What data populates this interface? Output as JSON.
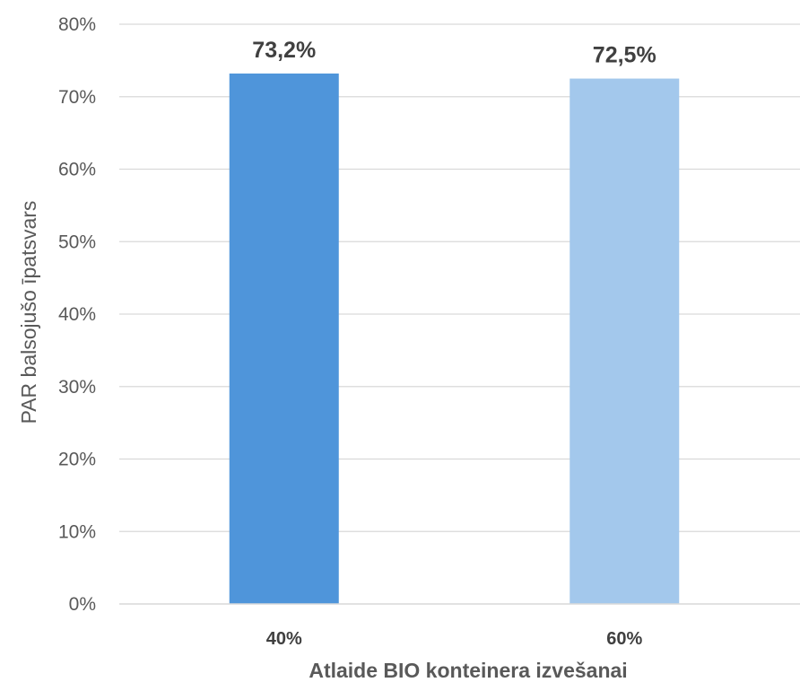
{
  "chart_data": {
    "type": "bar",
    "title": "",
    "xlabel": "Atlaide BIO konteinera izvešanai",
    "ylabel": "PAR balsojušo īpatsvars",
    "categories": [
      "40%",
      "60%"
    ],
    "values": [
      73.2,
      72.5
    ],
    "data_labels": [
      "73,2%",
      "72,5%"
    ],
    "ylim": [
      0,
      80
    ],
    "y_ticks": [
      0,
      10,
      20,
      30,
      40,
      50,
      60,
      70,
      80
    ],
    "y_tick_labels": [
      "0%",
      "10%",
      "20%",
      "30%",
      "40%",
      "50%",
      "60%",
      "70%",
      "80%"
    ],
    "bar_colors": [
      "#4f95da",
      "#a3c8ec"
    ],
    "grid": true,
    "legend": "none"
  }
}
